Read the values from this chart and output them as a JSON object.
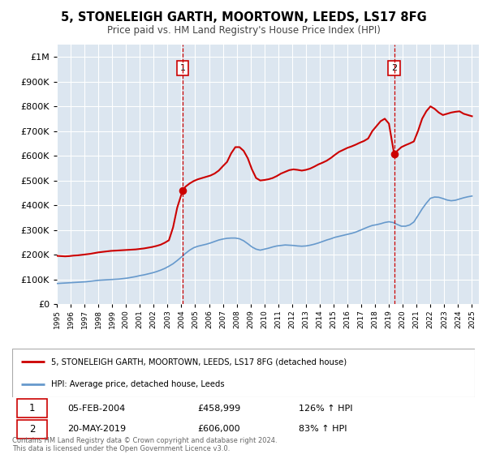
{
  "title": "5, STONELEIGH GARTH, MOORTOWN, LEEDS, LS17 8FG",
  "subtitle": "Price paid vs. HM Land Registry's House Price Index (HPI)",
  "legend_label_red": "5, STONELEIGH GARTH, MOORTOWN, LEEDS, LS17 8FG (detached house)",
  "legend_label_blue": "HPI: Average price, detached house, Leeds",
  "footnote1": "Contains HM Land Registry data © Crown copyright and database right 2024.",
  "footnote2": "This data is licensed under the Open Government Licence v3.0.",
  "sale1_date": "05-FEB-2004",
  "sale1_price": "£458,999",
  "sale1_hpi": "126% ↑ HPI",
  "sale2_date": "20-MAY-2019",
  "sale2_price": "£606,000",
  "sale2_hpi": "83% ↑ HPI",
  "sale1_year": 2004.09,
  "sale1_value": 458999,
  "sale2_year": 2019.38,
  "sale2_value": 606000,
  "red_color": "#cc0000",
  "blue_color": "#6699cc",
  "plot_bg_color": "#dce6f0",
  "grid_color": "#ffffff",
  "ylim_min": 0,
  "ylim_max": 1050000,
  "xlim_min": 1995,
  "xlim_max": 2025.5,
  "red_line_data": {
    "years": [
      1995.0,
      1995.3,
      1995.6,
      1995.9,
      1996.2,
      1996.5,
      1996.8,
      1997.1,
      1997.4,
      1997.7,
      1998.0,
      1998.3,
      1998.6,
      1998.9,
      1999.2,
      1999.5,
      1999.8,
      2000.1,
      2000.4,
      2000.7,
      2001.0,
      2001.3,
      2001.6,
      2001.9,
      2002.2,
      2002.5,
      2002.8,
      2003.1,
      2003.4,
      2003.7,
      2004.09,
      2004.3,
      2004.6,
      2004.9,
      2005.2,
      2005.5,
      2005.8,
      2006.1,
      2006.4,
      2006.7,
      2007.0,
      2007.3,
      2007.6,
      2007.9,
      2008.2,
      2008.5,
      2008.8,
      2009.1,
      2009.4,
      2009.7,
      2010.0,
      2010.3,
      2010.6,
      2010.9,
      2011.2,
      2011.5,
      2011.8,
      2012.1,
      2012.4,
      2012.7,
      2013.0,
      2013.3,
      2013.6,
      2013.9,
      2014.2,
      2014.5,
      2014.8,
      2015.1,
      2015.4,
      2015.7,
      2016.0,
      2016.3,
      2016.6,
      2016.9,
      2017.2,
      2017.5,
      2017.8,
      2018.1,
      2018.4,
      2018.7,
      2019.0,
      2019.38,
      2019.6,
      2019.9,
      2020.2,
      2020.5,
      2020.8,
      2021.1,
      2021.4,
      2021.7,
      2022.0,
      2022.3,
      2022.6,
      2022.9,
      2023.2,
      2023.5,
      2023.8,
      2024.1,
      2024.4,
      2024.7,
      2025.0
    ],
    "values": [
      195000,
      194000,
      193000,
      194000,
      196000,
      197000,
      199000,
      201000,
      203000,
      206000,
      209000,
      211000,
      213000,
      215000,
      216000,
      217000,
      218000,
      219000,
      220000,
      221000,
      223000,
      225000,
      228000,
      231000,
      235000,
      240000,
      248000,
      258000,
      310000,
      390000,
      458999,
      475000,
      488000,
      498000,
      505000,
      510000,
      515000,
      520000,
      528000,
      540000,
      558000,
      575000,
      610000,
      635000,
      635000,
      620000,
      590000,
      545000,
      510000,
      500000,
      502000,
      505000,
      510000,
      518000,
      528000,
      535000,
      542000,
      545000,
      543000,
      540000,
      543000,
      548000,
      556000,
      565000,
      572000,
      580000,
      591000,
      604000,
      616000,
      624000,
      632000,
      638000,
      645000,
      653000,
      660000,
      670000,
      700000,
      720000,
      740000,
      750000,
      730000,
      606000,
      620000,
      635000,
      643000,
      650000,
      658000,
      700000,
      750000,
      780000,
      800000,
      790000,
      775000,
      765000,
      770000,
      775000,
      778000,
      780000,
      770000,
      765000,
      760000
    ]
  },
  "blue_line_data": {
    "years": [
      1995.0,
      1995.3,
      1995.6,
      1995.9,
      1996.2,
      1996.5,
      1996.8,
      1997.1,
      1997.4,
      1997.7,
      1998.0,
      1998.3,
      1998.6,
      1998.9,
      1999.2,
      1999.5,
      1999.8,
      2000.1,
      2000.4,
      2000.7,
      2001.0,
      2001.3,
      2001.6,
      2001.9,
      2002.2,
      2002.5,
      2002.8,
      2003.1,
      2003.4,
      2003.7,
      2004.0,
      2004.3,
      2004.6,
      2004.9,
      2005.2,
      2005.5,
      2005.8,
      2006.1,
      2006.4,
      2006.7,
      2007.0,
      2007.3,
      2007.6,
      2007.9,
      2008.2,
      2008.5,
      2008.8,
      2009.1,
      2009.4,
      2009.7,
      2010.0,
      2010.3,
      2010.6,
      2010.9,
      2011.2,
      2011.5,
      2011.8,
      2012.1,
      2012.4,
      2012.7,
      2013.0,
      2013.3,
      2013.6,
      2013.9,
      2014.2,
      2014.5,
      2014.8,
      2015.1,
      2015.4,
      2015.7,
      2016.0,
      2016.3,
      2016.6,
      2016.9,
      2017.2,
      2017.5,
      2017.8,
      2018.1,
      2018.4,
      2018.7,
      2019.0,
      2019.3,
      2019.6,
      2019.9,
      2020.2,
      2020.5,
      2020.8,
      2021.1,
      2021.4,
      2021.7,
      2022.0,
      2022.3,
      2022.6,
      2022.9,
      2023.2,
      2023.5,
      2023.8,
      2024.1,
      2024.4,
      2024.7,
      2025.0
    ],
    "values": [
      83000,
      84000,
      85000,
      86000,
      87000,
      88000,
      89000,
      90000,
      92000,
      94000,
      96000,
      97000,
      98000,
      99000,
      100000,
      101000,
      103000,
      105000,
      108000,
      111000,
      115000,
      118000,
      122000,
      126000,
      131000,
      137000,
      144000,
      153000,
      163000,
      176000,
      190000,
      205000,
      218000,
      228000,
      234000,
      238000,
      242000,
      247000,
      253000,
      259000,
      263000,
      266000,
      267000,
      267000,
      264000,
      256000,
      244000,
      231000,
      222000,
      218000,
      222000,
      226000,
      231000,
      235000,
      237000,
      239000,
      238000,
      237000,
      235000,
      234000,
      235000,
      238000,
      242000,
      247000,
      253000,
      259000,
      264000,
      270000,
      274000,
      278000,
      282000,
      286000,
      291000,
      298000,
      305000,
      312000,
      318000,
      321000,
      325000,
      330000,
      333000,
      330000,
      322000,
      315000,
      315000,
      320000,
      332000,
      358000,
      385000,
      408000,
      428000,
      433000,
      432000,
      427000,
      421000,
      418000,
      420000,
      425000,
      430000,
      434000,
      437000
    ]
  }
}
